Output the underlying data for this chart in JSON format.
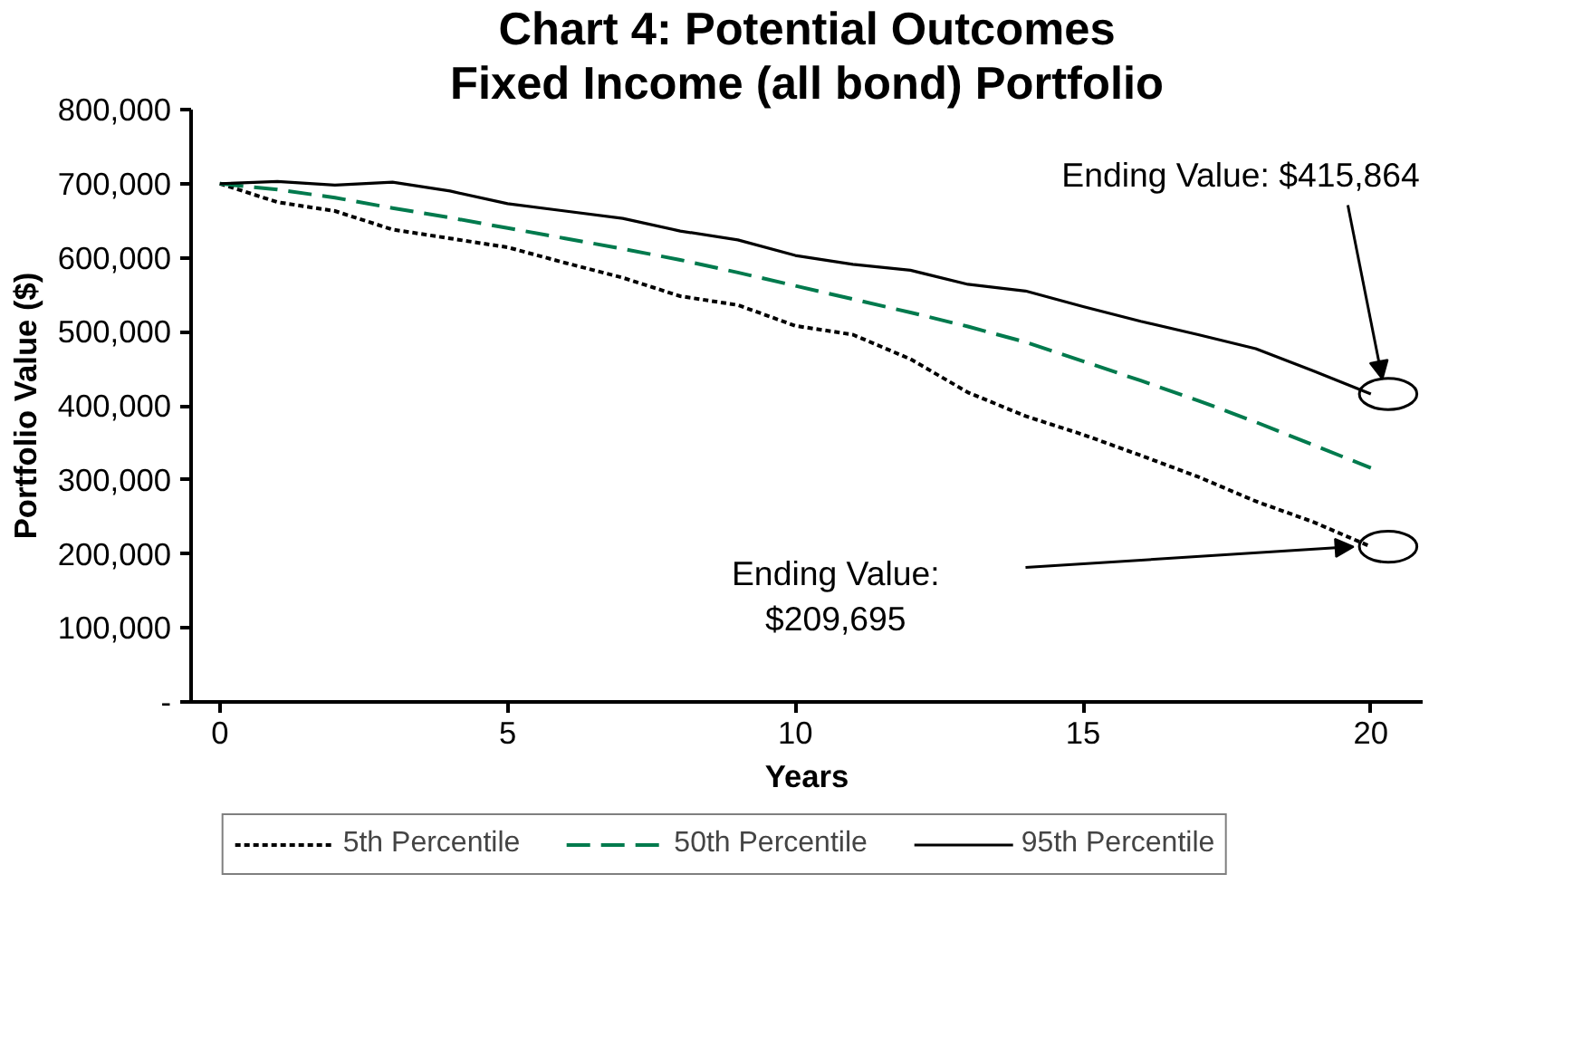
{
  "chart_data": {
    "type": "line",
    "title": "Chart 4: Potential Outcomes",
    "subtitle": "Fixed Income (all bond) Portfolio",
    "xlabel": "Years",
    "ylabel": "Portfolio Value ($)",
    "x": [
      0,
      1,
      2,
      3,
      4,
      5,
      6,
      7,
      8,
      9,
      10,
      11,
      12,
      13,
      14,
      15,
      16,
      17,
      18,
      19,
      20
    ],
    "series": [
      {
        "name": "5th Percentile",
        "color": "#000000",
        "line_style": "dotted",
        "values": [
          700000,
          675000,
          663000,
          638000,
          626000,
          614000,
          593000,
          573000,
          548000,
          536000,
          508000,
          496000,
          463000,
          418000,
          386000,
          361000,
          333000,
          304000,
          271000,
          243000,
          209695
        ]
      },
      {
        "name": "50th Percentile",
        "color": "#007a4d",
        "line_style": "dashed",
        "values": [
          700000,
          692000,
          681000,
          667000,
          654000,
          640000,
          626000,
          612000,
          597000,
          580000,
          562000,
          544000,
          526000,
          507000,
          486000,
          460000,
          434000,
          407000,
          378000,
          347000,
          316000
        ]
      },
      {
        "name": "95th Percentile",
        "color": "#000000",
        "line_style": "solid",
        "values": [
          700000,
          703000,
          698000,
          702000,
          690000,
          673000,
          663000,
          653000,
          636000,
          624000,
          603000,
          591000,
          583000,
          564000,
          555000,
          534000,
          514000,
          496000,
          477000,
          447000,
          415864
        ]
      }
    ],
    "xlim": [
      -0.5,
      20.9
    ],
    "xticks": [
      0,
      5,
      10,
      15,
      20
    ],
    "ylim": [
      0,
      800000
    ],
    "yticks": [
      {
        "value": 0,
        "label": "-"
      },
      {
        "value": 100000,
        "label": "100,000"
      },
      {
        "value": 200000,
        "label": "200,000"
      },
      {
        "value": 300000,
        "label": "300,000"
      },
      {
        "value": 400000,
        "label": "400,000"
      },
      {
        "value": 500000,
        "label": "500,000"
      },
      {
        "value": 600000,
        "label": "600,000"
      },
      {
        "value": 700000,
        "label": "700,000"
      },
      {
        "value": 800000,
        "label": "800,000"
      }
    ],
    "grid": false,
    "legend": "bottom",
    "marker": "none",
    "annotations": [
      "Ending Value: $415,864",
      "Ending Value:\n$209,695"
    ]
  }
}
